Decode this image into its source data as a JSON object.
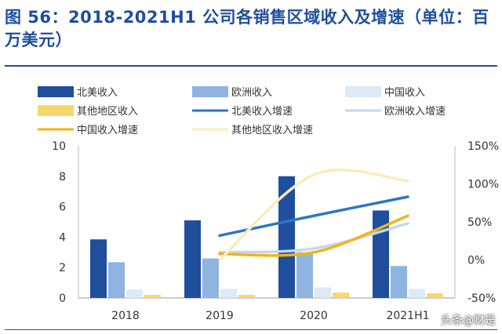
{
  "title": "图 56：2018-2021H1 公司各销售区域收入及增速（单位：百万美元）",
  "watermark": "头条@财是",
  "chart_data": {
    "type": "bar+line",
    "categories": [
      "2018",
      "2019",
      "2020",
      "2021H1"
    ],
    "left_axis": {
      "min": 0,
      "max": 10,
      "ticks": [
        0,
        2,
        4,
        6,
        8,
        10
      ]
    },
    "right_axis": {
      "min": -50,
      "max": 150,
      "ticks": [
        "-50%",
        "0%",
        "50%",
        "100%",
        "150%"
      ],
      "tick_values": [
        -50,
        0,
        50,
        100,
        150
      ]
    },
    "bar_series": [
      {
        "name": "北美收入",
        "color": "#1f4e9c",
        "values": [
          3.85,
          5.1,
          8.0,
          5.75
        ]
      },
      {
        "name": "欧洲收入",
        "color": "#8fb4e0",
        "values": [
          2.35,
          2.6,
          3.0,
          2.1
        ]
      },
      {
        "name": "中国收入",
        "color": "#dde9f6",
        "values": [
          0.55,
          0.6,
          0.7,
          0.6
        ]
      },
      {
        "name": "其他地区收入",
        "color": "#f9d66b",
        "values": [
          0.2,
          0.2,
          0.35,
          0.3
        ]
      }
    ],
    "line_series": [
      {
        "name": "北美收入增速",
        "color": "#2e75c7",
        "values": [
          null,
          32,
          58,
          83
        ]
      },
      {
        "name": "欧洲收入增速",
        "color": "#c4d7ee",
        "values": [
          null,
          10,
          15,
          48
        ]
      },
      {
        "name": "中国收入增速",
        "color": "#f2b417",
        "values": [
          null,
          8,
          10,
          58
        ]
      },
      {
        "name": "其他地区收入增速",
        "color": "#fcecb8",
        "values": [
          null,
          0,
          112,
          104
        ]
      }
    ]
  }
}
